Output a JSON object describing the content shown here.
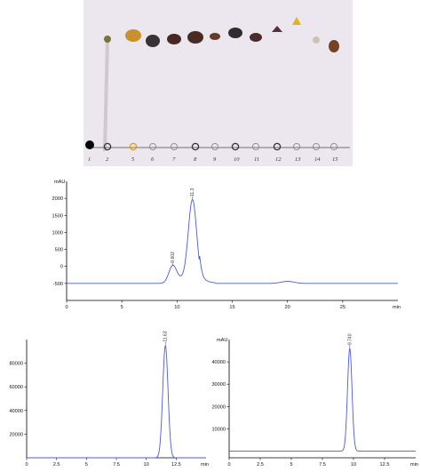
{
  "tlc": {
    "background": "#ece7ee",
    "baseline_color": "#4a4a4a",
    "spots": [
      {
        "lane": "1",
        "origin": "filled-black",
        "band_color": null
      },
      {
        "lane": "2",
        "origin": "ring-dark",
        "band_color": "#6f6a2a"
      },
      {
        "lane": "5",
        "origin": "ring-yellow",
        "band_color": "#c48a1a"
      },
      {
        "lane": "6",
        "origin": "ring-light",
        "band_color": "#2a2226"
      },
      {
        "lane": "7",
        "origin": "ring-light",
        "band_color": "#3a1812"
      },
      {
        "lane": "8",
        "origin": "ring-dark",
        "band_color": "#3b1a12"
      },
      {
        "lane": "9",
        "origin": "ring-light",
        "band_color": "#5a2a1a"
      },
      {
        "lane": "10",
        "origin": "ring-dark",
        "band_color": "#1e1e1e"
      },
      {
        "lane": "11",
        "origin": "ring-light",
        "band_color": "#3d1c1c"
      },
      {
        "lane": "12",
        "origin": "ring-dark",
        "band_color": "#5a2c3e"
      },
      {
        "lane": "13",
        "origin": "ring-light",
        "band_color": "#e2b21f"
      },
      {
        "lane": "14",
        "origin": "ring-light",
        "band_color": "#c9c0a8"
      },
      {
        "lane": "15",
        "origin": "ring-light",
        "band_color": "#6a3416"
      }
    ]
  },
  "chart_data": [
    {
      "type": "line",
      "ylabel": "mAU",
      "xlabel": "min",
      "xlim": [
        0,
        30
      ],
      "ylim": [
        -1000,
        2500
      ],
      "xticks": [
        0,
        5,
        10,
        15,
        20,
        25
      ],
      "yticks": [
        -500,
        0,
        500,
        1000,
        1500,
        2000
      ],
      "peaks": [
        {
          "rt": 9.6,
          "height": 500,
          "width": 0.35,
          "label": "9.602"
        },
        {
          "rt": 11.4,
          "height": 2450,
          "width": 0.38,
          "label": "11.3"
        }
      ],
      "baseline": -500,
      "trace_color": "#4b5bd6"
    },
    {
      "type": "line",
      "ylabel": "",
      "xlabel": "min",
      "xlim": [
        0,
        15
      ],
      "ylim": [
        0,
        100000
      ],
      "xticks": [
        0,
        2.5,
        5,
        7.5,
        10,
        12.5
      ],
      "yticks": [
        20000,
        40000,
        60000,
        80000
      ],
      "peaks": [
        {
          "rt": 11.6,
          "height": 95000,
          "width": 0.22,
          "label": "11.628"
        }
      ],
      "baseline": 0,
      "trace_color": "#4b5bd6"
    },
    {
      "type": "line",
      "ylabel": "mAU",
      "xlabel": "min",
      "xlim": [
        0,
        15
      ],
      "ylim": [
        -3000,
        50000
      ],
      "xticks": [
        0,
        2.5,
        5,
        7.5,
        10,
        12.5
      ],
      "yticks": [
        10000,
        20000,
        30000,
        40000
      ],
      "peaks": [
        {
          "rt": 9.7,
          "height": 46000,
          "width": 0.18,
          "label": "9.740"
        }
      ],
      "baseline": 0,
      "trace_color": "#4b5bd6"
    }
  ]
}
